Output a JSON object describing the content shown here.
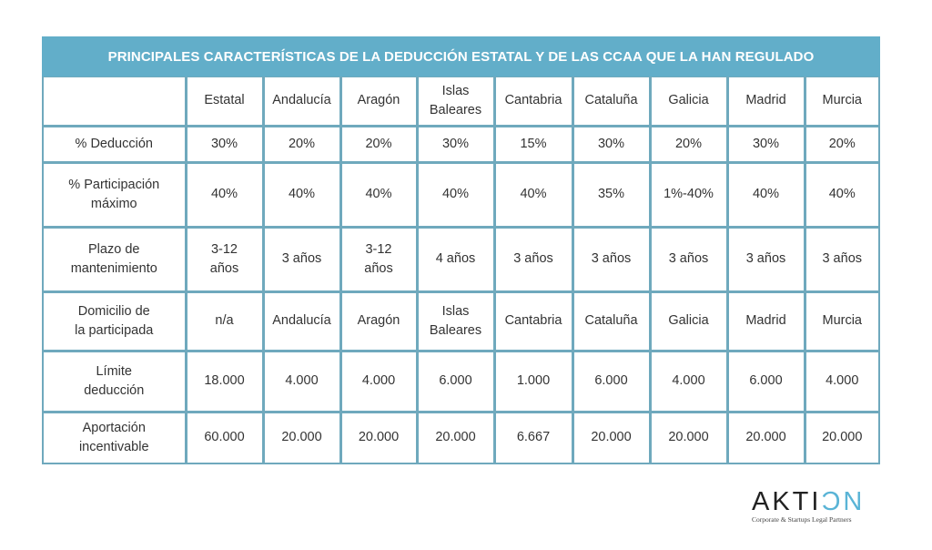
{
  "title": "PRINCIPALES CARACTERÍSTICAS DE LA DEDUCCIÓN ESTATAL Y DE LAS CCAA QUE LA HAN REGULADO",
  "colors": {
    "header_bg": "#62aec9",
    "border": "#6fa9bd",
    "logo_accent": "#5ab4d6"
  },
  "columns": [
    "",
    "Estatal",
    "Andalucía",
    "Aragón",
    "Islas\nBaleares",
    "Cantabria",
    "Cataluña",
    "Galicia",
    "Madrid",
    "Murcia"
  ],
  "rows": [
    {
      "label": "% Deducción",
      "values": [
        "30%",
        "20%",
        "20%",
        "30%",
        "15%",
        "30%",
        "20%",
        "30%",
        "20%"
      ]
    },
    {
      "label": "% Participación\nmáximo",
      "values": [
        "40%",
        "40%",
        "40%",
        "40%",
        "40%",
        "35%",
        "1%-40%",
        "40%",
        "40%"
      ]
    },
    {
      "label": "Plazo de\nmantenimiento",
      "values": [
        "3-12\naños",
        "3 años",
        "3-12\naños",
        "4 años",
        "3 años",
        "3 años",
        "3 años",
        "3 años",
        "3 años"
      ]
    },
    {
      "label": "Domicilio de\nla participada",
      "values": [
        "n/a",
        "Andalucía",
        "Aragón",
        "Islas\nBaleares",
        "Cantabria",
        "Cataluña",
        "Galicia",
        "Madrid",
        "Murcia"
      ]
    },
    {
      "label": "Límite\ndeducción",
      "values": [
        "18.000",
        "4.000",
        "4.000",
        "6.000",
        "1.000",
        "6.000",
        "4.000",
        "6.000",
        "4.000"
      ]
    },
    {
      "label": "Aportación\nincentivable",
      "values": [
        "60.000",
        "20.000",
        "20.000",
        "20.000",
        "6.667",
        "20.000",
        "20.000",
        "20.000",
        "20.000"
      ]
    }
  ],
  "logo": {
    "word_main": "AKTI",
    "word_accent": "ƆN",
    "tagline": "Corporate & Startups Legal Partners"
  }
}
